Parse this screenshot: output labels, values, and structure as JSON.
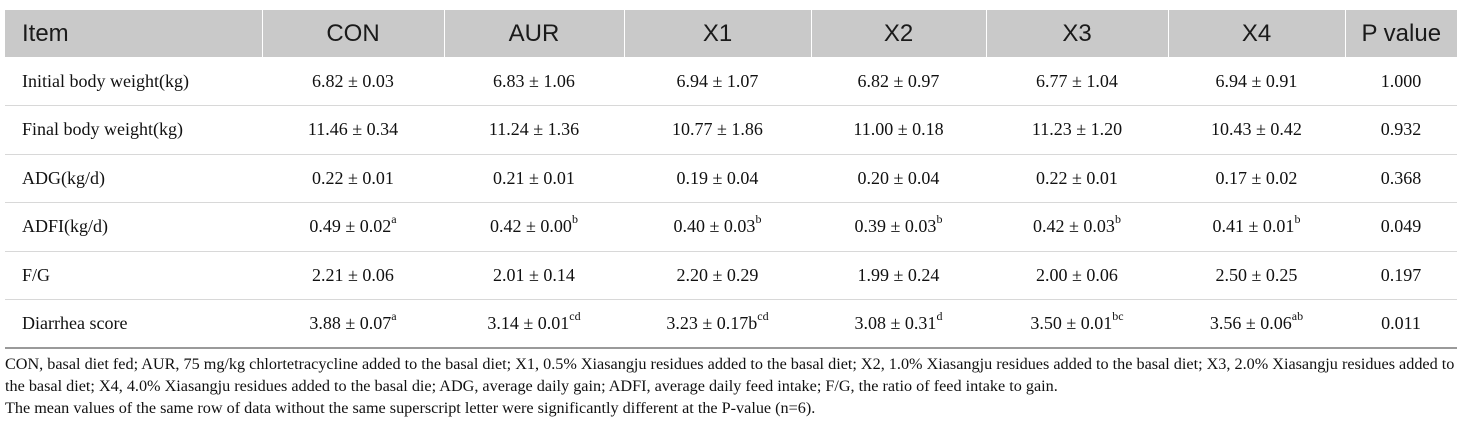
{
  "table": {
    "headers": [
      "Item",
      "CON",
      "AUR",
      "X1",
      "X2",
      "X3",
      "X4",
      "P value"
    ],
    "rows": [
      {
        "item": "Initial body weight(kg)",
        "cells": [
          {
            "v": "6.82 ± 0.03",
            "sup": ""
          },
          {
            "v": "6.83 ± 1.06",
            "sup": ""
          },
          {
            "v": "6.94 ± 1.07",
            "sup": ""
          },
          {
            "v": "6.82 ± 0.97",
            "sup": ""
          },
          {
            "v": "6.77 ± 1.04",
            "sup": ""
          },
          {
            "v": "6.94 ± 0.91",
            "sup": ""
          }
        ],
        "p": "1.000"
      },
      {
        "item": "Final body weight(kg)",
        "cells": [
          {
            "v": "11.46 ± 0.34",
            "sup": ""
          },
          {
            "v": "11.24 ± 1.36",
            "sup": ""
          },
          {
            "v": "10.77 ± 1.86",
            "sup": ""
          },
          {
            "v": "11.00 ± 0.18",
            "sup": ""
          },
          {
            "v": "11.23 ± 1.20",
            "sup": ""
          },
          {
            "v": "10.43 ± 0.42",
            "sup": ""
          }
        ],
        "p": "0.932"
      },
      {
        "item": "ADG(kg/d)",
        "cells": [
          {
            "v": "0.22 ± 0.01",
            "sup": ""
          },
          {
            "v": "0.21 ± 0.01",
            "sup": ""
          },
          {
            "v": "0.19 ± 0.04",
            "sup": ""
          },
          {
            "v": "0.20 ± 0.04",
            "sup": ""
          },
          {
            "v": "0.22 ± 0.01",
            "sup": ""
          },
          {
            "v": "0.17 ± 0.02",
            "sup": ""
          }
        ],
        "p": "0.368"
      },
      {
        "item": "ADFI(kg/d)",
        "cells": [
          {
            "v": "0.49 ± 0.02",
            "sup": "a"
          },
          {
            "v": "0.42 ± 0.00",
            "sup": "b"
          },
          {
            "v": "0.40 ± 0.03",
            "sup": "b"
          },
          {
            "v": "0.39 ± 0.03",
            "sup": "b"
          },
          {
            "v": "0.42 ± 0.03",
            "sup": "b"
          },
          {
            "v": "0.41 ± 0.01",
            "sup": "b"
          }
        ],
        "p": "0.049"
      },
      {
        "item": "F/G",
        "cells": [
          {
            "v": "2.21 ± 0.06",
            "sup": ""
          },
          {
            "v": "2.01 ± 0.14",
            "sup": ""
          },
          {
            "v": "2.20 ± 0.29",
            "sup": ""
          },
          {
            "v": "1.99 ± 0.24",
            "sup": ""
          },
          {
            "v": "2.00 ± 0.06",
            "sup": ""
          },
          {
            "v": "2.50 ± 0.25",
            "sup": ""
          }
        ],
        "p": "0.197"
      },
      {
        "item": "Diarrhea score",
        "cells": [
          {
            "v": "3.88 ± 0.07",
            "sup": "a"
          },
          {
            "v": "3.14 ± 0.01",
            "sup": "cd"
          },
          {
            "v": "3.23 ± 0.17b",
            "sup": "cd"
          },
          {
            "v": "3.08 ± 0.31",
            "sup": "d"
          },
          {
            "v": "3.50 ± 0.01",
            "sup": "bc"
          },
          {
            "v": "3.56 ± 0.06",
            "sup": "ab"
          }
        ],
        "p": "0.011"
      }
    ]
  },
  "footnote": {
    "line1": "CON, basal diet fed; AUR, 75 mg/kg chlortetracycline added to the basal diet; X1, 0.5% Xiasangju residues added to the basal diet; X2, 1.0% Xiasangju residues added to the basal diet; X3, 2.0% Xiasangju residues added to the basal diet; X4, 4.0% Xiasangju residues added to the basal die; ADG, average daily gain; ADFI, average daily feed intake; F/G, the ratio of feed intake to gain.",
    "line2": "The mean values of the same row of data without the same superscript letter were significantly different at the P-value (n=6)."
  }
}
